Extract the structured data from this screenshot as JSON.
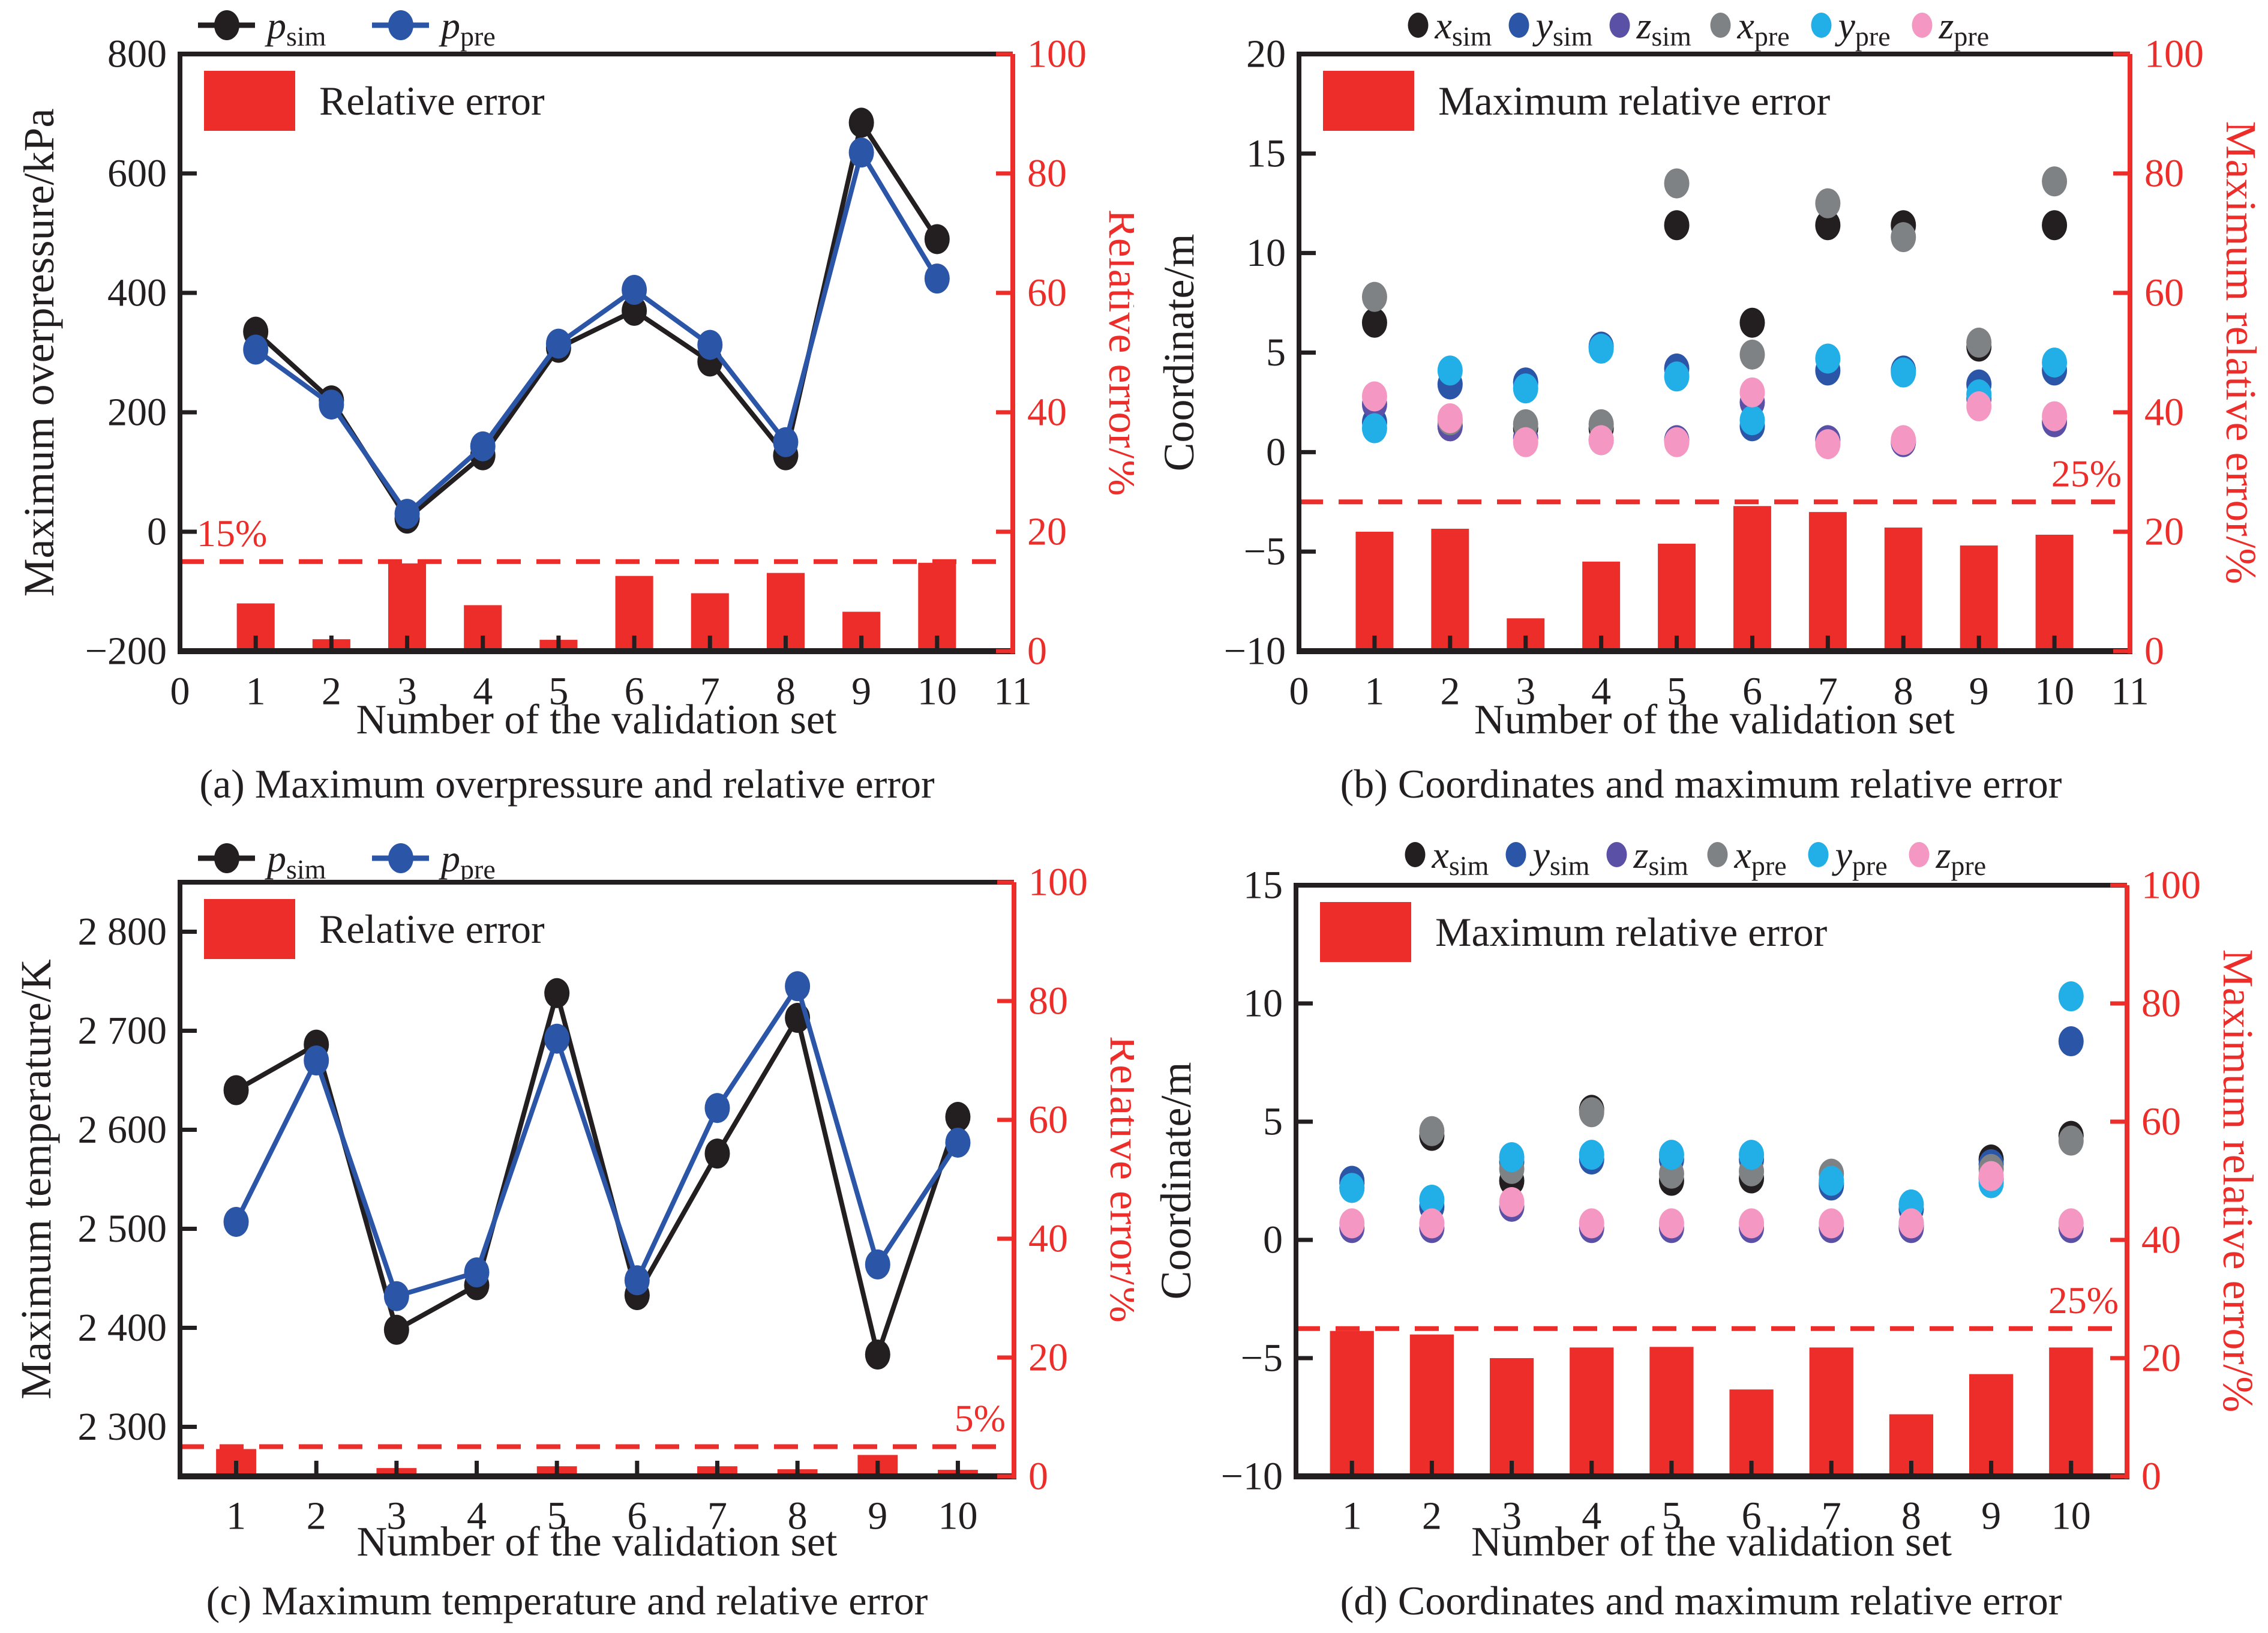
{
  "colors": {
    "black": "#231f20",
    "blue": "#2b55a7",
    "purple": "#5a50a5",
    "gray": "#7f8285",
    "cyan": "#22aee6",
    "pink": "#f498c3",
    "red": "#ed2d2a",
    "axis_black": "#231f20",
    "axis_red": "#ed2d2a"
  },
  "chart_data": [
    {
      "id": "a",
      "type": "line+bar",
      "caption": "(a) Maximum overpressure and relative error",
      "xlabel": "Number of the validation set",
      "left_axis": {
        "title": "Maximum overpressure/kPa",
        "min": -200,
        "max": 800,
        "tick_values": [
          -200,
          0,
          200,
          400,
          600,
          800
        ],
        "ticks": [
          "−200",
          "0",
          "200",
          "400",
          "600",
          "800"
        ]
      },
      "right_axis": {
        "title": "Relative error/%",
        "min": 0,
        "max": 100,
        "tick_values": [
          0,
          20,
          40,
          60,
          80,
          100
        ],
        "ticks": [
          "0",
          "20",
          "40",
          "60",
          "80",
          "100"
        ]
      },
      "x_axis": {
        "min": 0,
        "max": 11,
        "tick_values": [
          0,
          1,
          2,
          3,
          4,
          5,
          6,
          7,
          8,
          9,
          10,
          11
        ],
        "ticks": [
          "0",
          "1",
          "2",
          "3",
          "4",
          "5",
          "6",
          "7",
          "8",
          "9",
          "10",
          "11"
        ],
        "mark_values": [
          1,
          2,
          3,
          4,
          5,
          6,
          7,
          8,
          9,
          10
        ]
      },
      "categories": [
        1,
        2,
        3,
        4,
        5,
        6,
        7,
        8,
        9,
        10
      ],
      "series": [
        {
          "name": "p_sim",
          "label": {
            "base": "p",
            "sub": "sim"
          },
          "color": "black",
          "style": "line",
          "values": [
            335,
            220,
            22,
            128,
            308,
            370,
            285,
            128,
            685,
            490
          ]
        },
        {
          "name": "p_pre",
          "label": {
            "base": "p",
            "sub": "pre"
          },
          "color": "blue",
          "style": "line",
          "values": [
            305,
            213,
            30,
            143,
            315,
            405,
            313,
            150,
            635,
            424
          ]
        }
      ],
      "bars": {
        "label": "Relative error",
        "color": "red",
        "axis": "right",
        "width": 0.5,
        "values": [
          8,
          2,
          14.7,
          7.7,
          1.9,
          12.6,
          9.7,
          13.1,
          6.6,
          14.8
        ]
      },
      "threshold": {
        "value_pct": 15,
        "label": "15%",
        "label_anchor": "left"
      },
      "legend_position": "top-left"
    },
    {
      "id": "b",
      "type": "scatter+bar",
      "caption": "(b) Coordinates and maximum relative error",
      "xlabel": "Number of the validation set",
      "left_axis": {
        "title": "Coordinate/m",
        "min": -10,
        "max": 20,
        "tick_values": [
          -10,
          -5,
          0,
          5,
          10,
          15,
          20
        ],
        "ticks": [
          "−10",
          "−5",
          "0",
          "5",
          "10",
          "15",
          "20"
        ]
      },
      "right_axis": {
        "title": "Maximum relative error/%",
        "min": 0,
        "max": 100,
        "tick_values": [
          0,
          20,
          40,
          60,
          80,
          100
        ],
        "ticks": [
          "0",
          "20",
          "40",
          "60",
          "80",
          "100"
        ]
      },
      "x_axis": {
        "min": 0,
        "max": 11,
        "tick_values": [
          0,
          1,
          2,
          3,
          4,
          5,
          6,
          7,
          8,
          9,
          10,
          11
        ],
        "ticks": [
          "0",
          "1",
          "2",
          "3",
          "4",
          "5",
          "6",
          "7",
          "8",
          "9",
          "10",
          "11"
        ],
        "mark_values": [
          1,
          2,
          3,
          4,
          5,
          6,
          7,
          8,
          9,
          10
        ]
      },
      "categories": [
        1,
        2,
        3,
        4,
        5,
        6,
        7,
        8,
        9,
        10
      ],
      "series": [
        {
          "name": "x_sim",
          "label": {
            "base": "x",
            "sub": "sim"
          },
          "color": "black",
          "style": "dot",
          "values": [
            6.5,
            1.3,
            1.2,
            1.2,
            11.4,
            6.5,
            11.4,
            11.4,
            5.3,
            11.4
          ]
        },
        {
          "name": "y_sim",
          "label": {
            "base": "y",
            "sub": "sim"
          },
          "color": "blue",
          "style": "dot",
          "values": [
            1.5,
            3.4,
            3.5,
            5.3,
            4.2,
            1.3,
            4.1,
            4.1,
            3.4,
            4.1
          ]
        },
        {
          "name": "z_sim",
          "label": {
            "base": "z",
            "sub": "sim"
          },
          "color": "purple",
          "style": "dot",
          "values": [
            2.4,
            1.3,
            0.7,
            0.6,
            0.6,
            2.5,
            0.6,
            0.5,
            2.7,
            1.5
          ]
        },
        {
          "name": "x_pre",
          "label": {
            "base": "x",
            "sub": "pre"
          },
          "color": "gray",
          "style": "dot",
          "values": [
            7.8,
            1.6,
            1.4,
            1.4,
            13.5,
            4.9,
            12.5,
            10.8,
            5.5,
            13.6
          ]
        },
        {
          "name": "y_pre",
          "label": {
            "base": "y",
            "sub": "pre"
          },
          "color": "cyan",
          "style": "dot",
          "values": [
            1.2,
            4.1,
            3.2,
            5.2,
            3.8,
            1.6,
            4.7,
            4.0,
            2.9,
            4.5
          ]
        },
        {
          "name": "z_pre",
          "label": {
            "base": "z",
            "sub": "pre"
          },
          "color": "pink",
          "style": "dot",
          "values": [
            2.8,
            1.7,
            0.5,
            0.6,
            0.5,
            3.0,
            0.4,
            0.6,
            2.3,
            1.8
          ]
        }
      ],
      "bars": {
        "label": "Maximum relative error",
        "color": "red",
        "axis": "right",
        "width": 0.5,
        "values": [
          20,
          20.5,
          5.5,
          15,
          18,
          24.3,
          23.3,
          20.7,
          17.7,
          19.5
        ]
      },
      "threshold": {
        "value_pct": 25,
        "label": "25%",
        "label_anchor": "right"
      },
      "legend_position": "top-center"
    },
    {
      "id": "c",
      "type": "line+bar",
      "caption": "(c) Maximum temperature and relative error",
      "xlabel": "Number of the validation set",
      "left_axis": {
        "title": "Maximum temperature/K",
        "min": 2250,
        "max": 2850,
        "tick_values": [
          2300,
          2400,
          2500,
          2600,
          2700,
          2800
        ],
        "ticks": [
          "2 300",
          "2 400",
          "2 500",
          "2 600",
          "2 700",
          "2 800"
        ]
      },
      "right_axis": {
        "title": "Relative error/%",
        "min": 0,
        "max": 100,
        "tick_values": [
          0,
          20,
          40,
          60,
          80,
          100
        ],
        "ticks": [
          "0",
          "20",
          "40",
          "60",
          "80",
          "100"
        ]
      },
      "x_axis": {
        "min": 0.3,
        "max": 10.7,
        "tick_values": [
          1,
          2,
          3,
          4,
          5,
          6,
          7,
          8,
          9,
          10
        ],
        "ticks": [
          "1",
          "2",
          "3",
          "4",
          "5",
          "6",
          "7",
          "8",
          "9",
          "10"
        ],
        "mark_values": [
          1,
          2,
          3,
          4,
          5,
          6,
          7,
          8,
          9,
          10
        ]
      },
      "categories": [
        1,
        2,
        3,
        4,
        5,
        6,
        7,
        8,
        9,
        10
      ],
      "series": [
        {
          "name": "p_sim",
          "label": {
            "base": "p",
            "sub": "sim"
          },
          "color": "black",
          "style": "line",
          "values": [
            2640,
            2686,
            2398,
            2443,
            2738,
            2433,
            2576,
            2713,
            2373,
            2613
          ]
        },
        {
          "name": "p_pre",
          "label": {
            "base": "p",
            "sub": "pre"
          },
          "color": "blue",
          "style": "line",
          "values": [
            2507,
            2670,
            2432,
            2456,
            2692,
            2448,
            2622,
            2745,
            2464,
            2587
          ]
        }
      ],
      "bars": {
        "label": "Relative error",
        "color": "red",
        "axis": "right",
        "width": 0.5,
        "values": [
          4.6,
          0.5,
          1.4,
          0.3,
          1.7,
          0.5,
          1.7,
          1.2,
          3.6,
          1.1
        ]
      },
      "threshold": {
        "value_pct": 5,
        "label": "5%",
        "label_anchor": "right"
      },
      "legend_position": "top-left"
    },
    {
      "id": "d",
      "type": "scatter+bar",
      "caption": "(d) Coordinates and maximum relative error",
      "xlabel": "Number of the validation set",
      "left_axis": {
        "title": "Coordinate/m",
        "min": -10,
        "max": 15,
        "tick_values": [
          -10,
          -5,
          0,
          5,
          10,
          15
        ],
        "ticks": [
          "−10",
          "−5",
          "0",
          "5",
          "10",
          "15"
        ]
      },
      "right_axis": {
        "title": "Maximum relative error/%",
        "min": 0,
        "max": 100,
        "tick_values": [
          0,
          20,
          40,
          60,
          80,
          100
        ],
        "ticks": [
          "0",
          "20",
          "40",
          "60",
          "80",
          "100"
        ]
      },
      "x_axis": {
        "min": 0.3,
        "max": 10.7,
        "tick_values": [
          1,
          2,
          3,
          4,
          5,
          6,
          7,
          8,
          9,
          10
        ],
        "ticks": [
          "1",
          "2",
          "3",
          "4",
          "5",
          "6",
          "7",
          "8",
          "9",
          "10"
        ],
        "mark_values": [
          1,
          2,
          3,
          4,
          5,
          6,
          7,
          8,
          9,
          10
        ]
      },
      "categories": [
        1,
        2,
        3,
        4,
        5,
        6,
        7,
        8,
        9,
        10
      ],
      "series": [
        {
          "name": "x_sim",
          "label": {
            "base": "x",
            "sub": "sim"
          },
          "color": "black",
          "style": "dot",
          "values": [
            2.4,
            4.4,
            2.5,
            5.5,
            2.5,
            2.6,
            2.4,
            0.6,
            3.4,
            4.4
          ]
        },
        {
          "name": "y_sim",
          "label": {
            "base": "y",
            "sub": "sim"
          },
          "color": "blue",
          "style": "dot",
          "values": [
            2.5,
            1.4,
            3.3,
            3.4,
            3.4,
            3.4,
            2.3,
            1.3,
            3.2,
            8.4
          ]
        },
        {
          "name": "z_sim",
          "label": {
            "base": "z",
            "sub": "sim"
          },
          "color": "purple",
          "style": "dot",
          "values": [
            0.5,
            0.5,
            1.4,
            0.5,
            0.5,
            0.5,
            0.5,
            0.5,
            2.6,
            0.5
          ]
        },
        {
          "name": "x_pre",
          "label": {
            "base": "x",
            "sub": "pre"
          },
          "color": "gray",
          "style": "dot",
          "values": [
            2.2,
            4.6,
            3.0,
            5.4,
            2.8,
            2.9,
            2.8,
            0.7,
            3.0,
            4.2
          ]
        },
        {
          "name": "y_pre",
          "label": {
            "base": "y",
            "sub": "pre"
          },
          "color": "cyan",
          "style": "dot",
          "values": [
            2.2,
            1.7,
            3.5,
            3.6,
            3.6,
            3.6,
            2.5,
            1.5,
            2.4,
            10.3
          ]
        },
        {
          "name": "z_pre",
          "label": {
            "base": "z",
            "sub": "pre"
          },
          "color": "pink",
          "style": "dot",
          "values": [
            0.7,
            0.7,
            1.6,
            0.7,
            0.7,
            0.7,
            0.7,
            0.7,
            2.7,
            0.7
          ]
        }
      ],
      "bars": {
        "label": "Maximum relative error",
        "color": "red",
        "axis": "right",
        "width": 0.55,
        "values": [
          24.6,
          24,
          20,
          21.8,
          21.9,
          14.7,
          21.8,
          10.5,
          17.3,
          21.8
        ]
      },
      "threshold": {
        "value_pct": 25,
        "label": "25%",
        "label_anchor": "right"
      },
      "legend_position": "top-center"
    }
  ]
}
